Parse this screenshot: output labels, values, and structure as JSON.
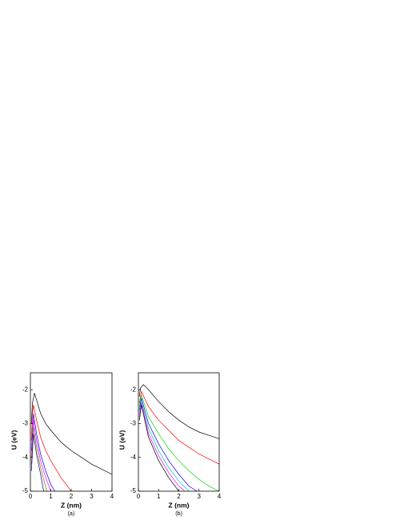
{
  "chart_data": [
    {
      "type": "line",
      "caption": "(a)",
      "xlabel": "Z (nm)",
      "ylabel": "U (eV)",
      "xlim": [
        0,
        4
      ],
      "ylim": [
        -5,
        -1.5
      ],
      "xticks": [
        0,
        1,
        2,
        3,
        4
      ],
      "yticks": [
        -5,
        -4,
        -3,
        -2
      ],
      "series": [
        {
          "color": "#000000",
          "x": [
            0.05,
            0.1,
            0.2,
            0.3,
            0.5,
            0.75,
            1,
            1.5,
            2,
            2.5,
            3,
            3.5,
            4
          ],
          "values": [
            -3.0,
            -2.4,
            -2.1,
            -2.3,
            -2.7,
            -3.0,
            -3.2,
            -3.55,
            -3.8,
            -4.0,
            -4.2,
            -4.35,
            -4.5
          ]
        },
        {
          "color": "#ff0000",
          "x": [
            0.05,
            0.1,
            0.15,
            0.3,
            0.5,
            0.75,
            1,
            1.5,
            2
          ],
          "values": [
            -3.5,
            -2.7,
            -2.45,
            -2.9,
            -3.4,
            -3.8,
            -4.1,
            -4.6,
            -5
          ]
        },
        {
          "color": "#0000ff",
          "x": [
            0.05,
            0.15,
            0.3,
            0.5,
            0.75,
            1,
            1.2
          ],
          "values": [
            -3.8,
            -2.7,
            -3.3,
            -3.9,
            -4.4,
            -4.8,
            -5
          ]
        },
        {
          "color": "#ff00ff",
          "x": [
            0.05,
            0.15,
            0.3,
            0.5,
            0.75,
            1.0
          ],
          "values": [
            -4,
            -2.9,
            -3.5,
            -4.1,
            -4.6,
            -5
          ]
        },
        {
          "color": "#808000",
          "x": [
            0.05,
            0.15,
            0.3,
            0.5,
            0.8
          ],
          "values": [
            -4.2,
            -3.1,
            -3.7,
            -4.3,
            -5
          ]
        },
        {
          "color": "#000080",
          "x": [
            0.05,
            0.15,
            0.3,
            0.5,
            0.65
          ],
          "values": [
            -4.4,
            -3.3,
            -3.9,
            -4.5,
            -5
          ]
        }
      ]
    },
    {
      "type": "line",
      "caption": "(b)",
      "xlabel": "Z (nm)",
      "ylabel": "U (eV)",
      "xlim": [
        0,
        4
      ],
      "ylim": [
        -5,
        -1.5
      ],
      "xticks": [
        0,
        1,
        2,
        3,
        4
      ],
      "yticks": [
        -5,
        -4,
        -3,
        -2
      ],
      "series": [
        {
          "color": "#000000",
          "x": [
            0.05,
            0.1,
            0.25,
            0.5,
            1,
            1.5,
            2,
            2.5,
            3,
            3.5,
            4
          ],
          "values": [
            -2.2,
            -1.95,
            -1.85,
            -2.0,
            -2.35,
            -2.65,
            -2.9,
            -3.1,
            -3.25,
            -3.35,
            -3.45
          ]
        },
        {
          "color": "#ff0000",
          "x": [
            0.05,
            0.15,
            0.5,
            1,
            1.5,
            2,
            2.5,
            3,
            3.5,
            4
          ],
          "values": [
            -2.4,
            -2.05,
            -2.5,
            -2.9,
            -3.2,
            -3.5,
            -3.7,
            -3.9,
            -4.05,
            -4.2
          ]
        },
        {
          "color": "#00dd00",
          "x": [
            0.05,
            0.15,
            0.5,
            1,
            1.5,
            2,
            2.5,
            3,
            3.5,
            4
          ],
          "values": [
            -2.5,
            -2.15,
            -2.8,
            -3.3,
            -3.75,
            -4.1,
            -4.4,
            -4.65,
            -4.85,
            -5.0
          ]
        },
        {
          "color": "#0000ff",
          "x": [
            0.05,
            0.15,
            0.5,
            1,
            1.5,
            2,
            2.5,
            2.9
          ],
          "values": [
            -2.6,
            -2.25,
            -3.0,
            -3.6,
            -4.1,
            -4.5,
            -4.85,
            -5
          ]
        },
        {
          "color": "#00bbbb",
          "x": [
            0.05,
            0.15,
            0.5,
            1,
            1.5,
            2,
            2.5
          ],
          "values": [
            -2.7,
            -2.35,
            -3.15,
            -3.8,
            -4.3,
            -4.7,
            -5
          ]
        },
        {
          "color": "#ff00ff",
          "x": [
            0.05,
            0.15,
            0.5,
            1,
            1.5,
            2,
            2.3
          ],
          "values": [
            -2.8,
            -2.4,
            -3.3,
            -3.95,
            -4.45,
            -4.85,
            -5
          ]
        },
        {
          "color": "#000000",
          "x": [
            0.05,
            0.15,
            0.5,
            1,
            1.5,
            2
          ],
          "values": [
            -2.9,
            -2.45,
            -3.4,
            -4.1,
            -4.6,
            -5
          ]
        }
      ]
    }
  ]
}
